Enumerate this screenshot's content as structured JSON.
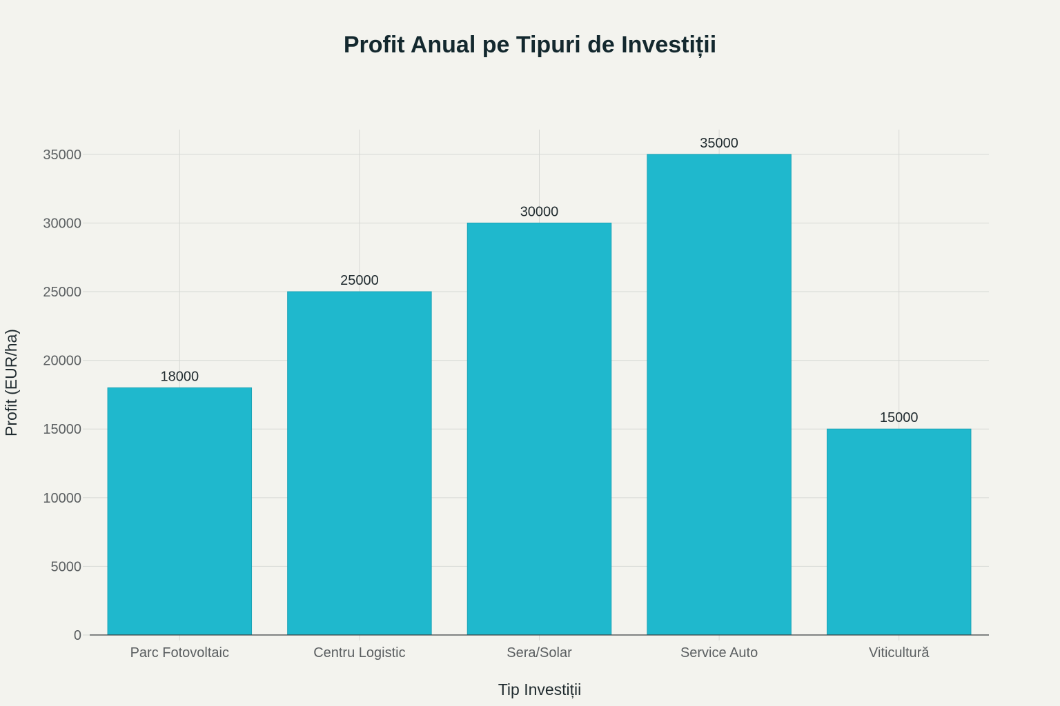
{
  "chart_data": {
    "type": "bar",
    "title": "Profit Anual pe Tipuri de Investiții",
    "xlabel": "Tip Investiții",
    "ylabel": "Profit (EUR/ha)",
    "categories": [
      "Parc Fotovoltaic",
      "Centru Logistic",
      "Sera/Solar",
      "Service Auto",
      "Viticultură"
    ],
    "values": [
      18000,
      25000,
      30000,
      35000,
      15000
    ],
    "data_labels": [
      "18000",
      "25000",
      "30000",
      "35000",
      "15000"
    ],
    "yticks": [
      0,
      5000,
      10000,
      15000,
      20000,
      25000,
      30000,
      35000
    ],
    "ylim": [
      0,
      36800
    ],
    "grid": true,
    "bar_color": "#1fb8cd",
    "bar_edge_color": "#1aa3b6"
  }
}
